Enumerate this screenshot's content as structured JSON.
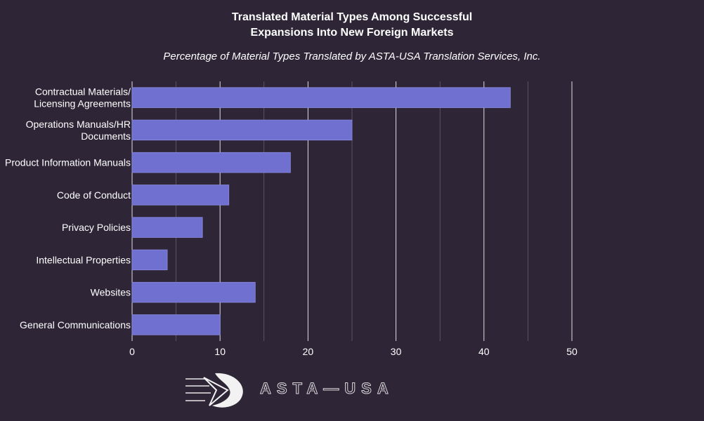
{
  "title_line1": "Translated Material Types Among Successful",
  "title_line2": "Expansions Into New Foreign Markets",
  "subtitle": "Percentage of Material Types Translated by ASTA-USA Translation Services, Inc.",
  "logo_text": "ASTA—USA",
  "colors": {
    "background": "#2e2537",
    "bar": "#7070d0",
    "grid": "#ffffff"
  },
  "chart_data": {
    "type": "bar",
    "orientation": "horizontal",
    "title": "Translated Material Types Among Successful Expansions Into New Foreign Markets",
    "subtitle": "Percentage of Material Types Translated by ASTA-USA Translation Services, Inc.",
    "categories": [
      [
        "Contractual Materials/",
        "Licensing Agreements"
      ],
      [
        "Operations Manuals/HR",
        "Documents"
      ],
      [
        "Product Information Manuals"
      ],
      [
        "Code of Conduct"
      ],
      [
        "Privacy Policies"
      ],
      [
        "Intellectual Properties"
      ],
      [
        "Websites"
      ],
      [
        "General Communications"
      ]
    ],
    "values": [
      43,
      25,
      18,
      11,
      8,
      4,
      14,
      10
    ],
    "xlim": [
      0,
      50
    ],
    "xticks": [
      0,
      10,
      20,
      30,
      40,
      50
    ],
    "grid": true,
    "xlabel": "",
    "ylabel": ""
  }
}
